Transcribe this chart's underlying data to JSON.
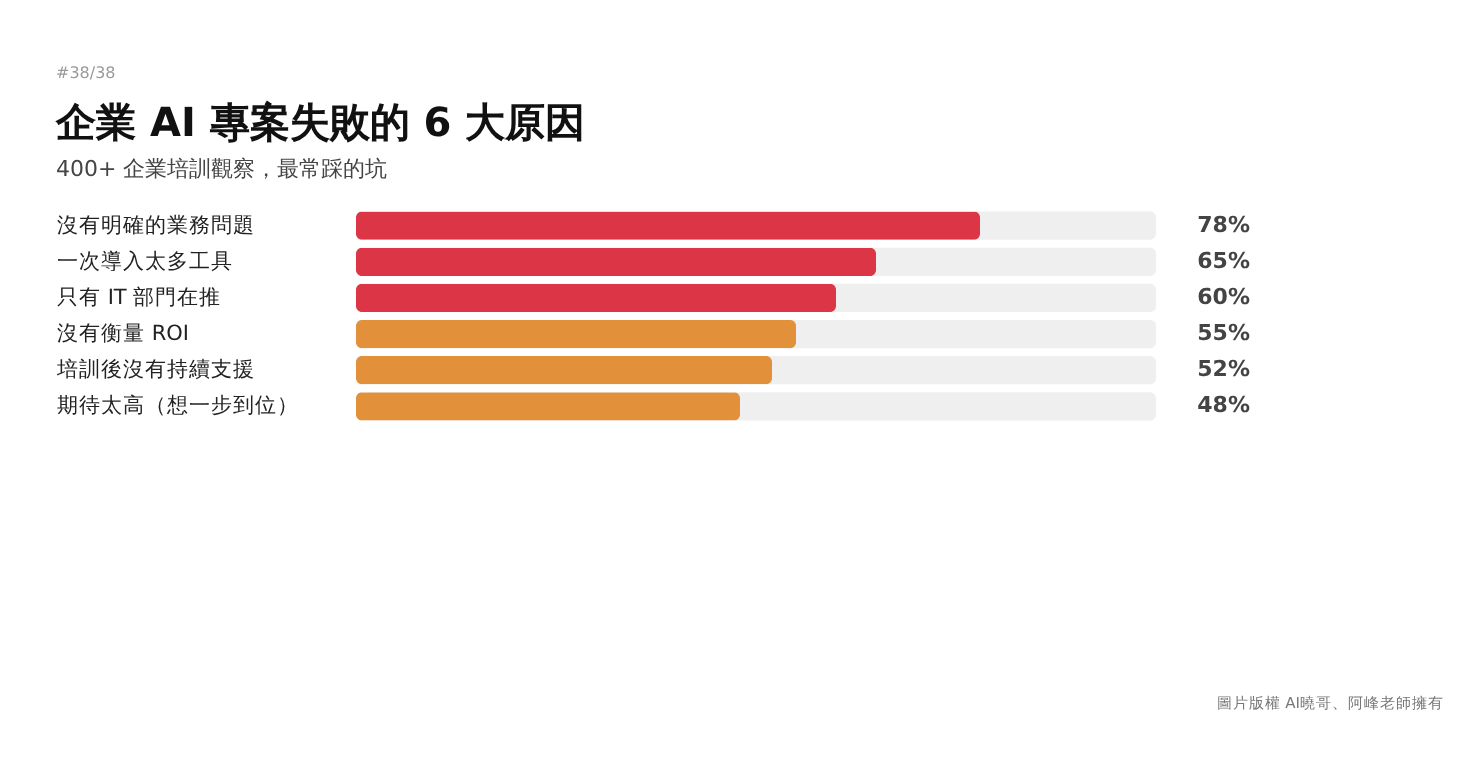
{
  "chart_data": {
    "type": "bar",
    "orientation": "horizontal",
    "title": "企業 AI 專案失敗的 6 大原因",
    "subtitle": "400+ 企業培訓觀察，最常踩的坑",
    "categories": [
      "沒有明確的業務問題",
      "一次導入太多工具",
      "只有 IT 部門在推",
      "沒有衡量 ROI",
      "培訓後沒有持續支援",
      "期待太高（想一步到位）"
    ],
    "values": [
      78,
      65,
      60,
      55,
      52,
      48
    ],
    "colors": [
      "#dc3545",
      "#dc3545",
      "#dc3545",
      "#e2903a",
      "#e2903a",
      "#e2903a"
    ],
    "value_labels": [
      "78%",
      "65%",
      "60%",
      "55%",
      "52%",
      "48%"
    ],
    "xlim": [
      0,
      100
    ],
    "tick_labels": "y",
    "annotations": [
      "#38/38",
      "圖片版權 AI曉哥、阿峰老師擁有"
    ]
  }
}
